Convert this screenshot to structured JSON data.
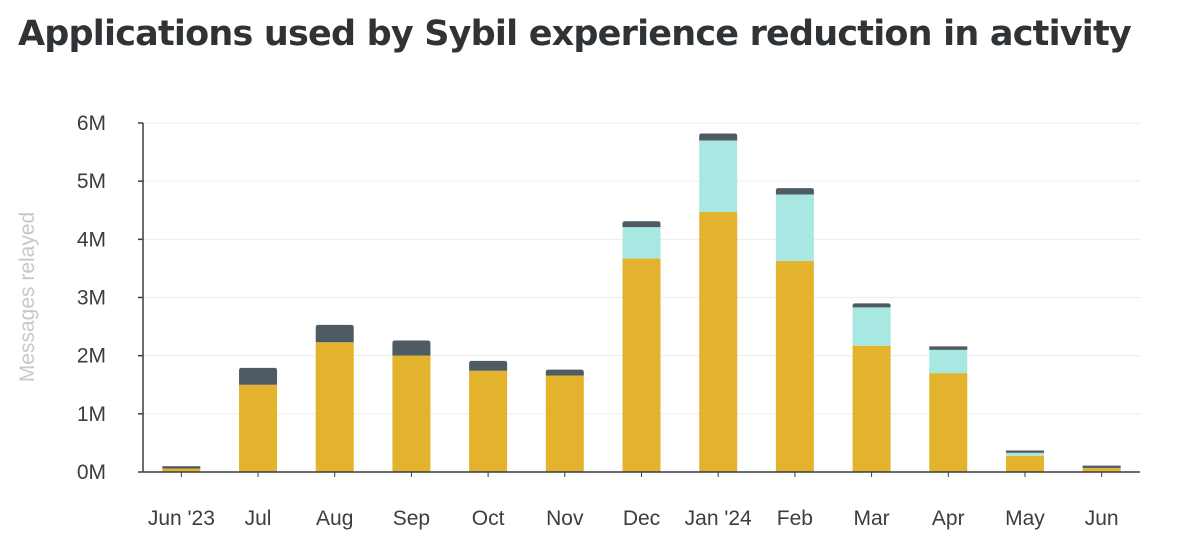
{
  "chart_data": {
    "type": "bar",
    "stacked": true,
    "title": "Applications used by Sybil experience reduction in activity",
    "xlabel": "",
    "ylabel": "Messages relayed",
    "ylim": [
      0,
      6000000
    ],
    "yticks": [
      0,
      1000000,
      2000000,
      3000000,
      4000000,
      5000000,
      6000000
    ],
    "ytick_labels": [
      "0M",
      "1M",
      "2M",
      "3M",
      "4M",
      "5M",
      "6M"
    ],
    "grid": true,
    "legend": "none",
    "categories": [
      "Jun '23",
      "Jul",
      "Aug",
      "Sep",
      "Oct",
      "Nov",
      "Dec",
      "Jan '24",
      "Feb",
      "Mar",
      "Apr",
      "May",
      "Jun"
    ],
    "series": [
      {
        "color": "#e3b32d",
        "values": [
          60000,
          1500000,
          2230000,
          2000000,
          1740000,
          1660000,
          3670000,
          4470000,
          3630000,
          2170000,
          1700000,
          280000,
          70000
        ]
      },
      {
        "color": "#a8e8e2",
        "values": [
          0,
          0,
          0,
          0,
          0,
          0,
          540000,
          1230000,
          1140000,
          660000,
          400000,
          50000,
          0
        ]
      },
      {
        "color": "#4f5b62",
        "values": [
          40000,
          290000,
          300000,
          260000,
          170000,
          100000,
          100000,
          120000,
          110000,
          70000,
          60000,
          40000,
          40000
        ]
      }
    ]
  }
}
